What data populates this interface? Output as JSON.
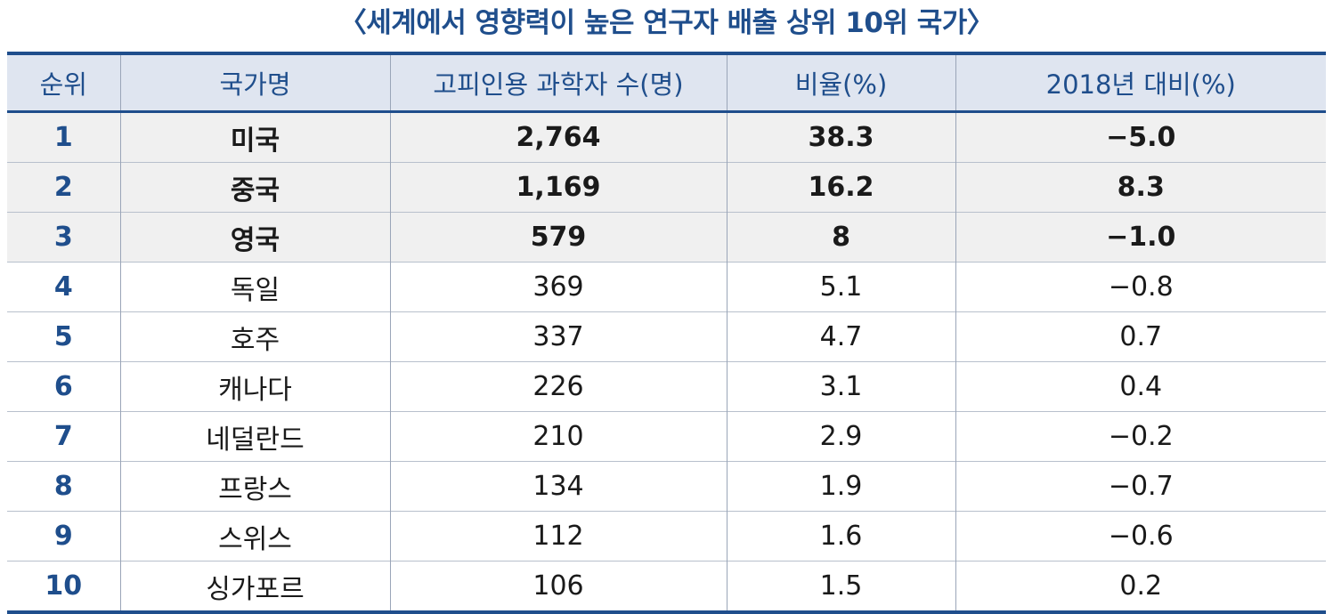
{
  "title": "〈세계에서 영향력이 높은 연구자 배출 상위 10위 국가〉",
  "table": {
    "headers": [
      "순위",
      "국가명",
      "고피인용 과학자 수(명)",
      "비율(%)",
      "2018년 대비(%)"
    ],
    "rows": [
      {
        "rank": "1",
        "country": "미국",
        "count": "2,764",
        "ratio": "38.3",
        "change": "−5.0",
        "highlight": true
      },
      {
        "rank": "2",
        "country": "중국",
        "count": "1,169",
        "ratio": "16.2",
        "change": "8.3",
        "highlight": true
      },
      {
        "rank": "3",
        "country": "영국",
        "count": "579",
        "ratio": "8",
        "change": "−1.0",
        "highlight": true
      },
      {
        "rank": "4",
        "country": "독일",
        "count": "369",
        "ratio": "5.1",
        "change": "−0.8",
        "highlight": false
      },
      {
        "rank": "5",
        "country": "호주",
        "count": "337",
        "ratio": "4.7",
        "change": "0.7",
        "highlight": false
      },
      {
        "rank": "6",
        "country": "캐나다",
        "count": "226",
        "ratio": "3.1",
        "change": "0.4",
        "highlight": false
      },
      {
        "rank": "7",
        "country": "네덜란드",
        "count": "210",
        "ratio": "2.9",
        "change": "−0.2",
        "highlight": false
      },
      {
        "rank": "8",
        "country": "프랑스",
        "count": "134",
        "ratio": "1.9",
        "change": "−0.7",
        "highlight": false
      },
      {
        "rank": "9",
        "country": "스위스",
        "count": "112",
        "ratio": "1.6",
        "change": "−0.6",
        "highlight": false
      },
      {
        "rank": "10",
        "country": "싱가포르",
        "count": "106",
        "ratio": "1.5",
        "change": "0.2",
        "highlight": false
      }
    ]
  },
  "colors": {
    "accent": "#1f4e8c",
    "header_bg": "#dfe5f0",
    "highlight_bg": "#f0f0f0"
  }
}
